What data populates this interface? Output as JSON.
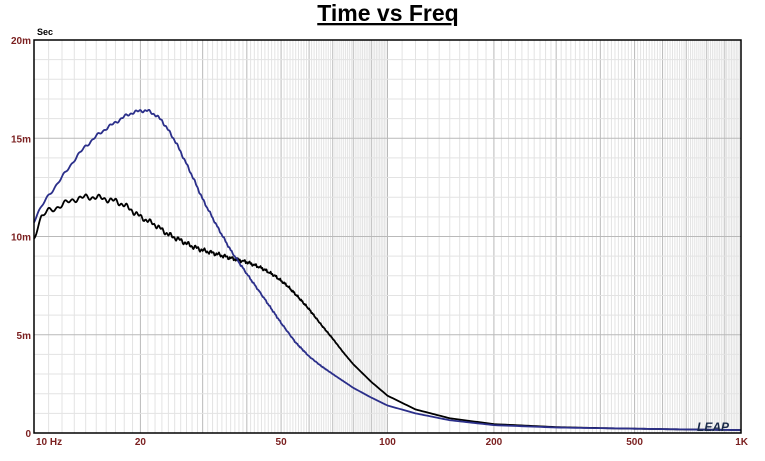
{
  "chart_data": {
    "type": "line",
    "title": "Time vs Freq",
    "ylabel": "Sec",
    "xlabel": "",
    "x_scale": "log",
    "xlim": [
      10,
      1000
    ],
    "ylim": [
      0,
      0.02
    ],
    "grid": true,
    "legend": "none",
    "x_ticks": [
      {
        "value": 10,
        "label": "10 Hz"
      },
      {
        "value": 20,
        "label": "20"
      },
      {
        "value": 50,
        "label": "50"
      },
      {
        "value": 100,
        "label": "100"
      },
      {
        "value": 200,
        "label": "200"
      },
      {
        "value": 500,
        "label": "500"
      },
      {
        "value": 1000,
        "label": "1K"
      }
    ],
    "y_ticks": [
      {
        "value": 0,
        "label": "0"
      },
      {
        "value": 0.005,
        "label": "5m"
      },
      {
        "value": 0.01,
        "label": "10m"
      },
      {
        "value": 0.015,
        "label": "15m"
      },
      {
        "value": 0.02,
        "label": "20m"
      }
    ],
    "series": [
      {
        "color": "#000000",
        "points": [
          [
            10,
            0.01
          ],
          [
            10.5,
            0.011
          ],
          [
            11,
            0.0113
          ],
          [
            12,
            0.0116
          ],
          [
            13,
            0.0119
          ],
          [
            14,
            0.012
          ],
          [
            15,
            0.012
          ],
          [
            16,
            0.0119
          ],
          [
            17,
            0.0118
          ],
          [
            18,
            0.0116
          ],
          [
            19,
            0.0113
          ],
          [
            20,
            0.011
          ],
          [
            22,
            0.0106
          ],
          [
            24,
            0.0101
          ],
          [
            26,
            0.0098
          ],
          [
            28,
            0.0095
          ],
          [
            30,
            0.0093
          ],
          [
            33,
            0.0091
          ],
          [
            36,
            0.0089
          ],
          [
            40,
            0.0087
          ],
          [
            44,
            0.0084
          ],
          [
            48,
            0.008
          ],
          [
            52,
            0.0075
          ],
          [
            56,
            0.0069
          ],
          [
            60,
            0.0063
          ],
          [
            65,
            0.0055
          ],
          [
            70,
            0.0048
          ],
          [
            75,
            0.0041
          ],
          [
            80,
            0.0035
          ],
          [
            90,
            0.0026
          ],
          [
            100,
            0.0019
          ],
          [
            120,
            0.0012
          ],
          [
            150,
            0.00075
          ],
          [
            200,
            0.00045
          ],
          [
            300,
            0.0003
          ],
          [
            400,
            0.00025
          ],
          [
            500,
            0.00022
          ],
          [
            700,
            0.00018
          ],
          [
            1000,
            0.00015
          ]
        ]
      },
      {
        "color": "#2b2f8a",
        "points": [
          [
            10,
            0.0108
          ],
          [
            10.5,
            0.0115
          ],
          [
            11,
            0.0121
          ],
          [
            12,
            0.013
          ],
          [
            13,
            0.0139
          ],
          [
            14,
            0.0146
          ],
          [
            15,
            0.0151
          ],
          [
            16,
            0.0155
          ],
          [
            17,
            0.0158
          ],
          [
            18,
            0.0161
          ],
          [
            19,
            0.0163
          ],
          [
            20,
            0.0164
          ],
          [
            21,
            0.0164
          ],
          [
            22,
            0.0162
          ],
          [
            23,
            0.0159
          ],
          [
            24,
            0.0154
          ],
          [
            25,
            0.0149
          ],
          [
            26,
            0.0143
          ],
          [
            28,
            0.0131
          ],
          [
            30,
            0.0119
          ],
          [
            33,
            0.0105
          ],
          [
            36,
            0.0093
          ],
          [
            40,
            0.0081
          ],
          [
            45,
            0.0068
          ],
          [
            50,
            0.0056
          ],
          [
            55,
            0.0046
          ],
          [
            60,
            0.0039
          ],
          [
            65,
            0.0034
          ],
          [
            70,
            0.003
          ],
          [
            80,
            0.0023
          ],
          [
            90,
            0.0018
          ],
          [
            100,
            0.0014
          ],
          [
            120,
            0.001
          ],
          [
            150,
            0.00065
          ],
          [
            200,
            0.0004
          ],
          [
            300,
            0.00028
          ],
          [
            500,
            0.00022
          ],
          [
            700,
            0.00018
          ],
          [
            1000,
            0.00015
          ]
        ]
      }
    ]
  },
  "logo_text": "LEAP"
}
